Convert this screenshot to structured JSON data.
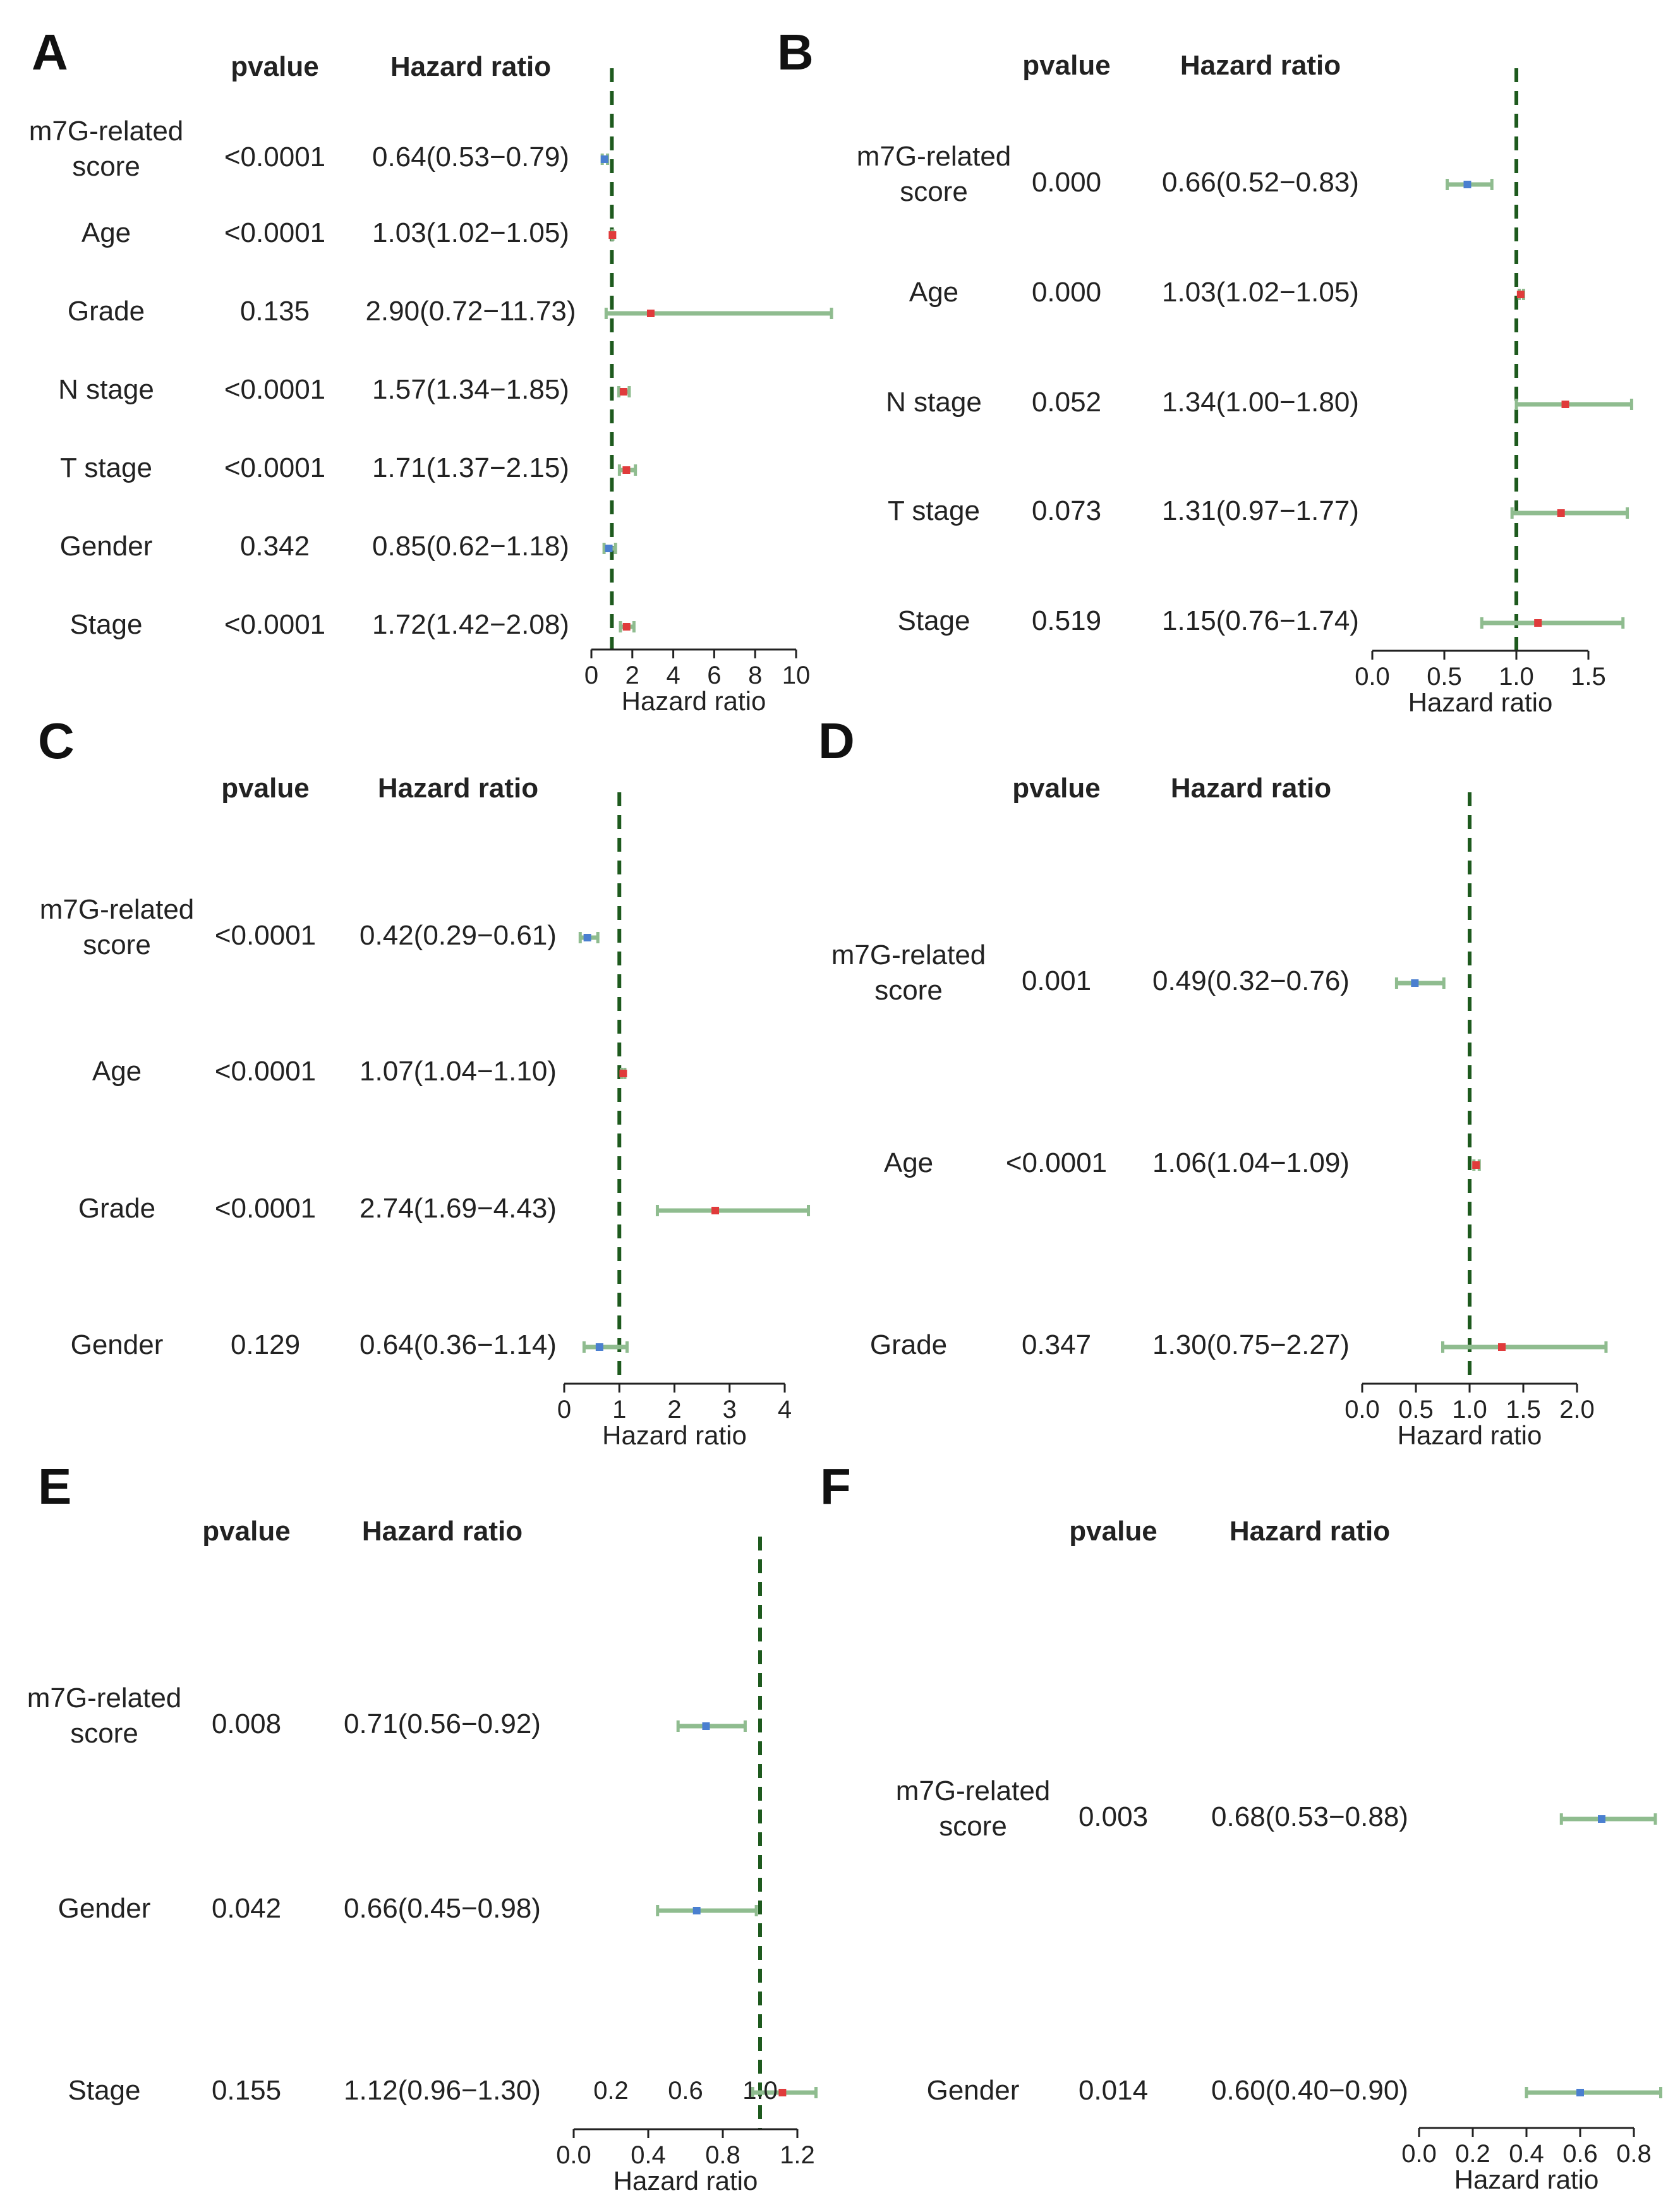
{
  "chart_data": [
    {
      "type": "forest",
      "panel": "A",
      "col_pvalue": "pvalue",
      "col_hr": "Hazard ratio",
      "xlabel": "Hazard ratio",
      "xlim": [
        0,
        10
      ],
      "ticks": [
        0,
        2,
        4,
        6,
        8,
        10
      ],
      "tick_labels": [
        "0",
        "2",
        "4",
        "6",
        "8",
        "10"
      ],
      "reference": 1,
      "rows": [
        {
          "label": "m7G-related score",
          "pvalue": "<0.0001",
          "hr_text": "0.64(0.53−0.79)",
          "hr": 0.64,
          "lo": 0.53,
          "hi": 0.79
        },
        {
          "label": "Age",
          "pvalue": "<0.0001",
          "hr_text": "1.03(1.02−1.05)",
          "hr": 1.03,
          "lo": 1.02,
          "hi": 1.05
        },
        {
          "label": "Grade",
          "pvalue": "0.135",
          "hr_text": "2.90(0.72−11.73)",
          "hr": 2.9,
          "lo": 0.72,
          "hi": 11.73
        },
        {
          "label": "N stage",
          "pvalue": "<0.0001",
          "hr_text": "1.57(1.34−1.85)",
          "hr": 1.57,
          "lo": 1.34,
          "hi": 1.85
        },
        {
          "label": "T stage",
          "pvalue": "<0.0001",
          "hr_text": "1.71(1.37−2.15)",
          "hr": 1.71,
          "lo": 1.37,
          "hi": 2.15
        },
        {
          "label": "Gender",
          "pvalue": "0.342",
          "hr_text": "0.85(0.62−1.18)",
          "hr": 0.85,
          "lo": 0.62,
          "hi": 1.18
        },
        {
          "label": "Stage",
          "pvalue": "<0.0001",
          "hr_text": "1.72(1.42−2.08)",
          "hr": 1.72,
          "lo": 1.42,
          "hi": 2.08
        }
      ]
    },
    {
      "type": "forest",
      "panel": "B",
      "col_pvalue": "pvalue",
      "col_hr": "Hazard ratio",
      "xlabel": "Hazard ratio",
      "xlim": [
        0,
        1.5
      ],
      "ticks": [
        0,
        0.5,
        1.0,
        1.5
      ],
      "tick_labels": [
        "0.0",
        "0.5",
        "1.0",
        "1.5"
      ],
      "reference": 1,
      "rows": [
        {
          "label": "m7G-related score",
          "pvalue": "0.000",
          "hr_text": "0.66(0.52−0.83)",
          "hr": 0.66,
          "lo": 0.52,
          "hi": 0.83
        },
        {
          "label": "Age",
          "pvalue": "0.000",
          "hr_text": "1.03(1.02−1.05)",
          "hr": 1.03,
          "lo": 1.02,
          "hi": 1.05
        },
        {
          "label": "N stage",
          "pvalue": "0.052",
          "hr_text": "1.34(1.00−1.80)",
          "hr": 1.34,
          "lo": 1.0,
          "hi": 1.8
        },
        {
          "label": "T stage",
          "pvalue": "0.073",
          "hr_text": "1.31(0.97−1.77)",
          "hr": 1.31,
          "lo": 0.97,
          "hi": 1.77
        },
        {
          "label": "Stage",
          "pvalue": "0.519",
          "hr_text": "1.15(0.76−1.74)",
          "hr": 1.15,
          "lo": 0.76,
          "hi": 1.74
        }
      ]
    },
    {
      "type": "forest",
      "panel": "C",
      "col_pvalue": "pvalue",
      "col_hr": "Hazard ratio",
      "xlabel": "Hazard ratio",
      "xlim": [
        0,
        4
      ],
      "ticks": [
        0,
        1,
        2,
        3,
        4
      ],
      "tick_labels": [
        "0",
        "1",
        "2",
        "3",
        "4"
      ],
      "reference": 1,
      "rows": [
        {
          "label": "m7G-related score",
          "pvalue": "<0.0001",
          "hr_text": "0.42(0.29−0.61)",
          "hr": 0.42,
          "lo": 0.29,
          "hi": 0.61
        },
        {
          "label": "Age",
          "pvalue": "<0.0001",
          "hr_text": "1.07(1.04−1.10)",
          "hr": 1.07,
          "lo": 1.04,
          "hi": 1.1
        },
        {
          "label": "Grade",
          "pvalue": "<0.0001",
          "hr_text": "2.74(1.69−4.43)",
          "hr": 2.74,
          "lo": 1.69,
          "hi": 4.43
        },
        {
          "label": "Gender",
          "pvalue": "0.129",
          "hr_text": "0.64(0.36−1.14)",
          "hr": 0.64,
          "lo": 0.36,
          "hi": 1.14
        }
      ]
    },
    {
      "type": "forest",
      "panel": "D",
      "col_pvalue": "pvalue",
      "col_hr": "Hazard ratio",
      "xlabel": "Hazard ratio",
      "xlim": [
        0,
        2.0
      ],
      "ticks": [
        0,
        0.5,
        1.0,
        1.5,
        2.0
      ],
      "tick_labels": [
        "0.0",
        "0.5",
        "1.0",
        "1.5",
        "2.0"
      ],
      "reference": 1,
      "rows": [
        {
          "label": "m7G-related score",
          "pvalue": "0.001",
          "hr_text": "0.49(0.32−0.76)",
          "hr": 0.49,
          "lo": 0.32,
          "hi": 0.76
        },
        {
          "label": "Age",
          "pvalue": "<0.0001",
          "hr_text": "1.06(1.04−1.09)",
          "hr": 1.06,
          "lo": 1.04,
          "hi": 1.09
        },
        {
          "label": "Grade",
          "pvalue": "0.347",
          "hr_text": "1.30(0.75−2.27)",
          "hr": 1.3,
          "lo": 0.75,
          "hi": 2.27
        }
      ]
    },
    {
      "type": "forest",
      "panel": "E",
      "col_pvalue": "pvalue",
      "col_hr": "Hazard ratio",
      "xlabel": "Hazard ratio",
      "xlim": [
        0,
        1.2
      ],
      "ticks": [
        0,
        0.4,
        0.8,
        1.2
      ],
      "tick_labels": [
        "0.0",
        "0.4",
        "0.8",
        "1.2"
      ],
      "upper_ticks": [
        0.2,
        0.6,
        1.0
      ],
      "upper_tick_labels": [
        "0.2",
        "0.6",
        "1.0"
      ],
      "reference": 1,
      "rows": [
        {
          "label": "m7G-related score",
          "pvalue": "0.008",
          "hr_text": "0.71(0.56−0.92)",
          "hr": 0.71,
          "lo": 0.56,
          "hi": 0.92
        },
        {
          "label": "Gender",
          "pvalue": "0.042",
          "hr_text": "0.66(0.45−0.98)",
          "hr": 0.66,
          "lo": 0.45,
          "hi": 0.98
        },
        {
          "label": "Stage",
          "pvalue": "0.155",
          "hr_text": "1.12(0.96−1.30)",
          "hr": 1.12,
          "lo": 0.96,
          "hi": 1.3
        }
      ]
    },
    {
      "type": "forest",
      "panel": "F",
      "col_pvalue": "pvalue",
      "col_hr": "Hazard ratio",
      "xlabel": "Hazard ratio",
      "xlim": [
        0,
        0.8
      ],
      "ticks": [
        0,
        0.2,
        0.4,
        0.6,
        0.8
      ],
      "tick_labels": [
        "0.0",
        "0.2",
        "0.4",
        "0.6",
        "0.8"
      ],
      "reference": null,
      "rows": [
        {
          "label": "m7G-related score",
          "pvalue": "0.003",
          "hr_text": "0.68(0.53−0.88)",
          "hr": 0.68,
          "lo": 0.53,
          "hi": 0.88
        },
        {
          "label": "Gender",
          "pvalue": "0.014",
          "hr_text": "0.60(0.40−0.90)",
          "hr": 0.6,
          "lo": 0.4,
          "hi": 0.9
        }
      ]
    }
  ],
  "colors": {
    "ci_line": "#8fbc8f",
    "ci_cap": "#8fbc8f",
    "point_protective": "#4a7fd0",
    "point_risk": "#e03b3b",
    "reference_line": "#1e5a1e",
    "text": "#222222"
  }
}
